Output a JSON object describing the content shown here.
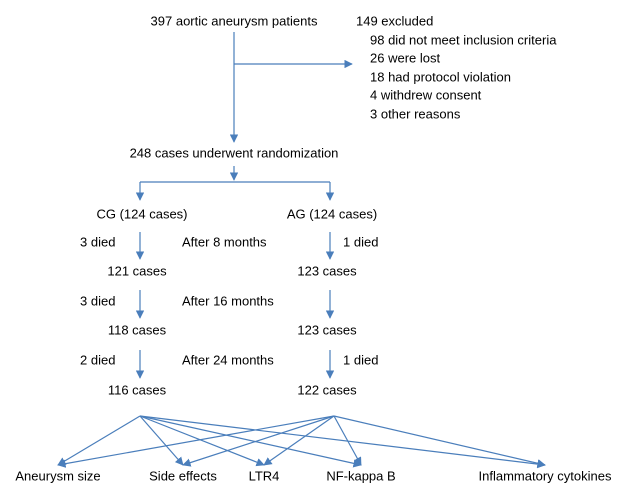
{
  "enrolled": "397 aortic aneurysm patients",
  "excluded": {
    "title": "149 excluded",
    "reasons": [
      "98 did not meet inclusion criteria",
      "26 were lost",
      "18 had protocol violation",
      "4 withdrew consent",
      "3 other reasons"
    ]
  },
  "randomized": "248 cases underwent randomization",
  "groups": [
    {
      "name": "CG (124 cases)",
      "stages": [
        {
          "died": "3 died",
          "remaining": "121 cases"
        },
        {
          "died": "3 died",
          "remaining": "118 cases"
        },
        {
          "died": "2 died",
          "remaining": "116 cases"
        }
      ]
    },
    {
      "name": "AG (124 cases)",
      "stages": [
        {
          "died": "1 died",
          "remaining": "123 cases"
        },
        {
          "remaining": "123 cases"
        },
        {
          "died": "1 died",
          "remaining": "122 cases"
        }
      ]
    }
  ],
  "intervals": [
    "After 8 months",
    "After 16 months",
    "After 24 months"
  ],
  "outcomes": [
    "Aneurysm size",
    "Side effects",
    "LTR4",
    "NF-kappa B",
    "Inflammatory cytokines"
  ]
}
